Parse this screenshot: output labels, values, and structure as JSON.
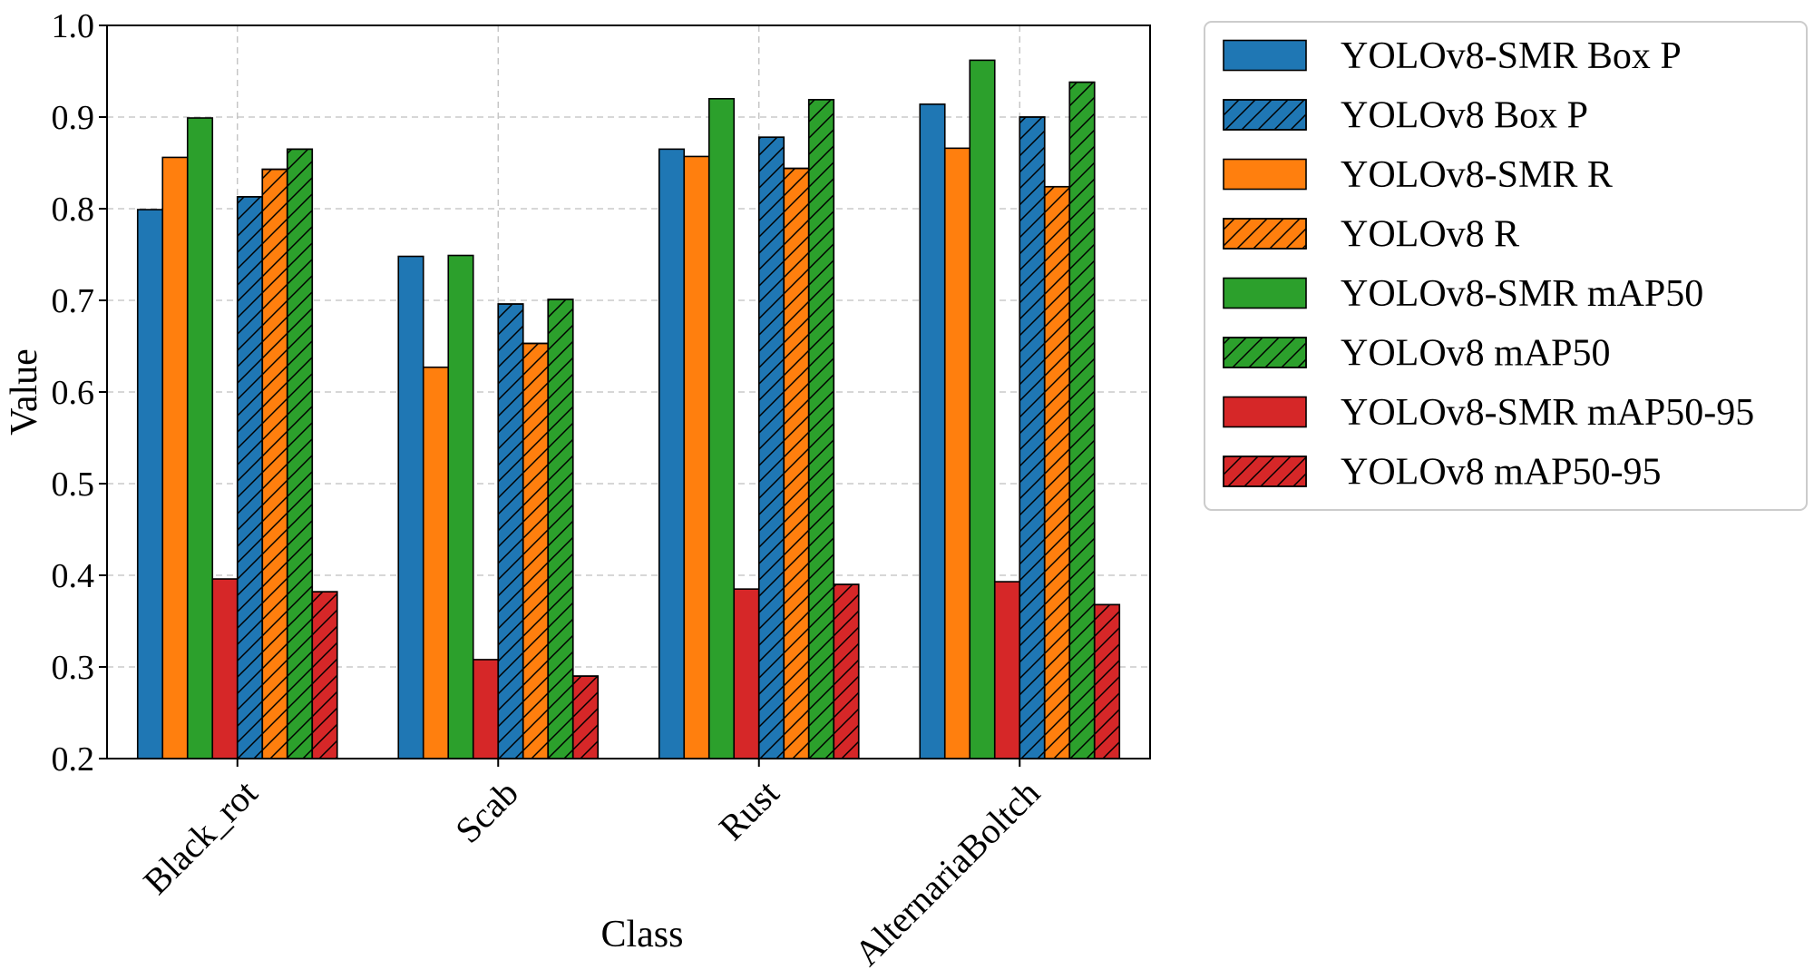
{
  "chart_data": {
    "type": "bar",
    "title": "",
    "xlabel": "Class",
    "ylabel": "Value",
    "ylim": [
      0.2,
      1.0
    ],
    "yticks": [
      "0.2",
      "0.3",
      "0.4",
      "0.5",
      "0.6",
      "0.7",
      "0.8",
      "0.9",
      "1.0"
    ],
    "grid": true,
    "legend_position": "outside-right",
    "categories": [
      "Black_rot",
      "Scab",
      "Rust",
      "AlternariaBoltch"
    ],
    "series": [
      {
        "name": "YOLOv8-SMR Box P",
        "color": "#1f77b4",
        "hatch": false,
        "values": [
          0.799,
          0.748,
          0.865,
          0.914
        ]
      },
      {
        "name": "YOLOv8-SMR R",
        "color": "#ff7f0e",
        "hatch": false,
        "values": [
          0.856,
          0.627,
          0.857,
          0.866
        ]
      },
      {
        "name": "YOLOv8-SMR mAP50",
        "color": "#2ca02c",
        "hatch": false,
        "values": [
          0.899,
          0.749,
          0.92,
          0.962
        ]
      },
      {
        "name": "YOLOv8-SMR mAP50-95",
        "color": "#d62728",
        "hatch": false,
        "values": [
          0.396,
          0.308,
          0.385,
          0.393
        ]
      },
      {
        "name": "YOLOv8 Box P",
        "color": "#1f77b4",
        "hatch": true,
        "values": [
          0.813,
          0.696,
          0.878,
          0.9
        ]
      },
      {
        "name": "YOLOv8 R",
        "color": "#ff7f0e",
        "hatch": true,
        "values": [
          0.843,
          0.653,
          0.844,
          0.824
        ]
      },
      {
        "name": "YOLOv8 mAP50",
        "color": "#2ca02c",
        "hatch": true,
        "values": [
          0.865,
          0.701,
          0.919,
          0.938
        ]
      },
      {
        "name": "YOLOv8 mAP50-95",
        "color": "#d62728",
        "hatch": true,
        "values": [
          0.382,
          0.29,
          0.39,
          0.368
        ]
      }
    ],
    "legend_order": [
      "YOLOv8-SMR Box P",
      "YOLOv8 Box P",
      "YOLOv8-SMR R",
      "YOLOv8 R",
      "YOLOv8-SMR mAP50",
      "YOLOv8 mAP50",
      "YOLOv8-SMR mAP50-95",
      "YOLOv8 mAP50-95"
    ]
  }
}
